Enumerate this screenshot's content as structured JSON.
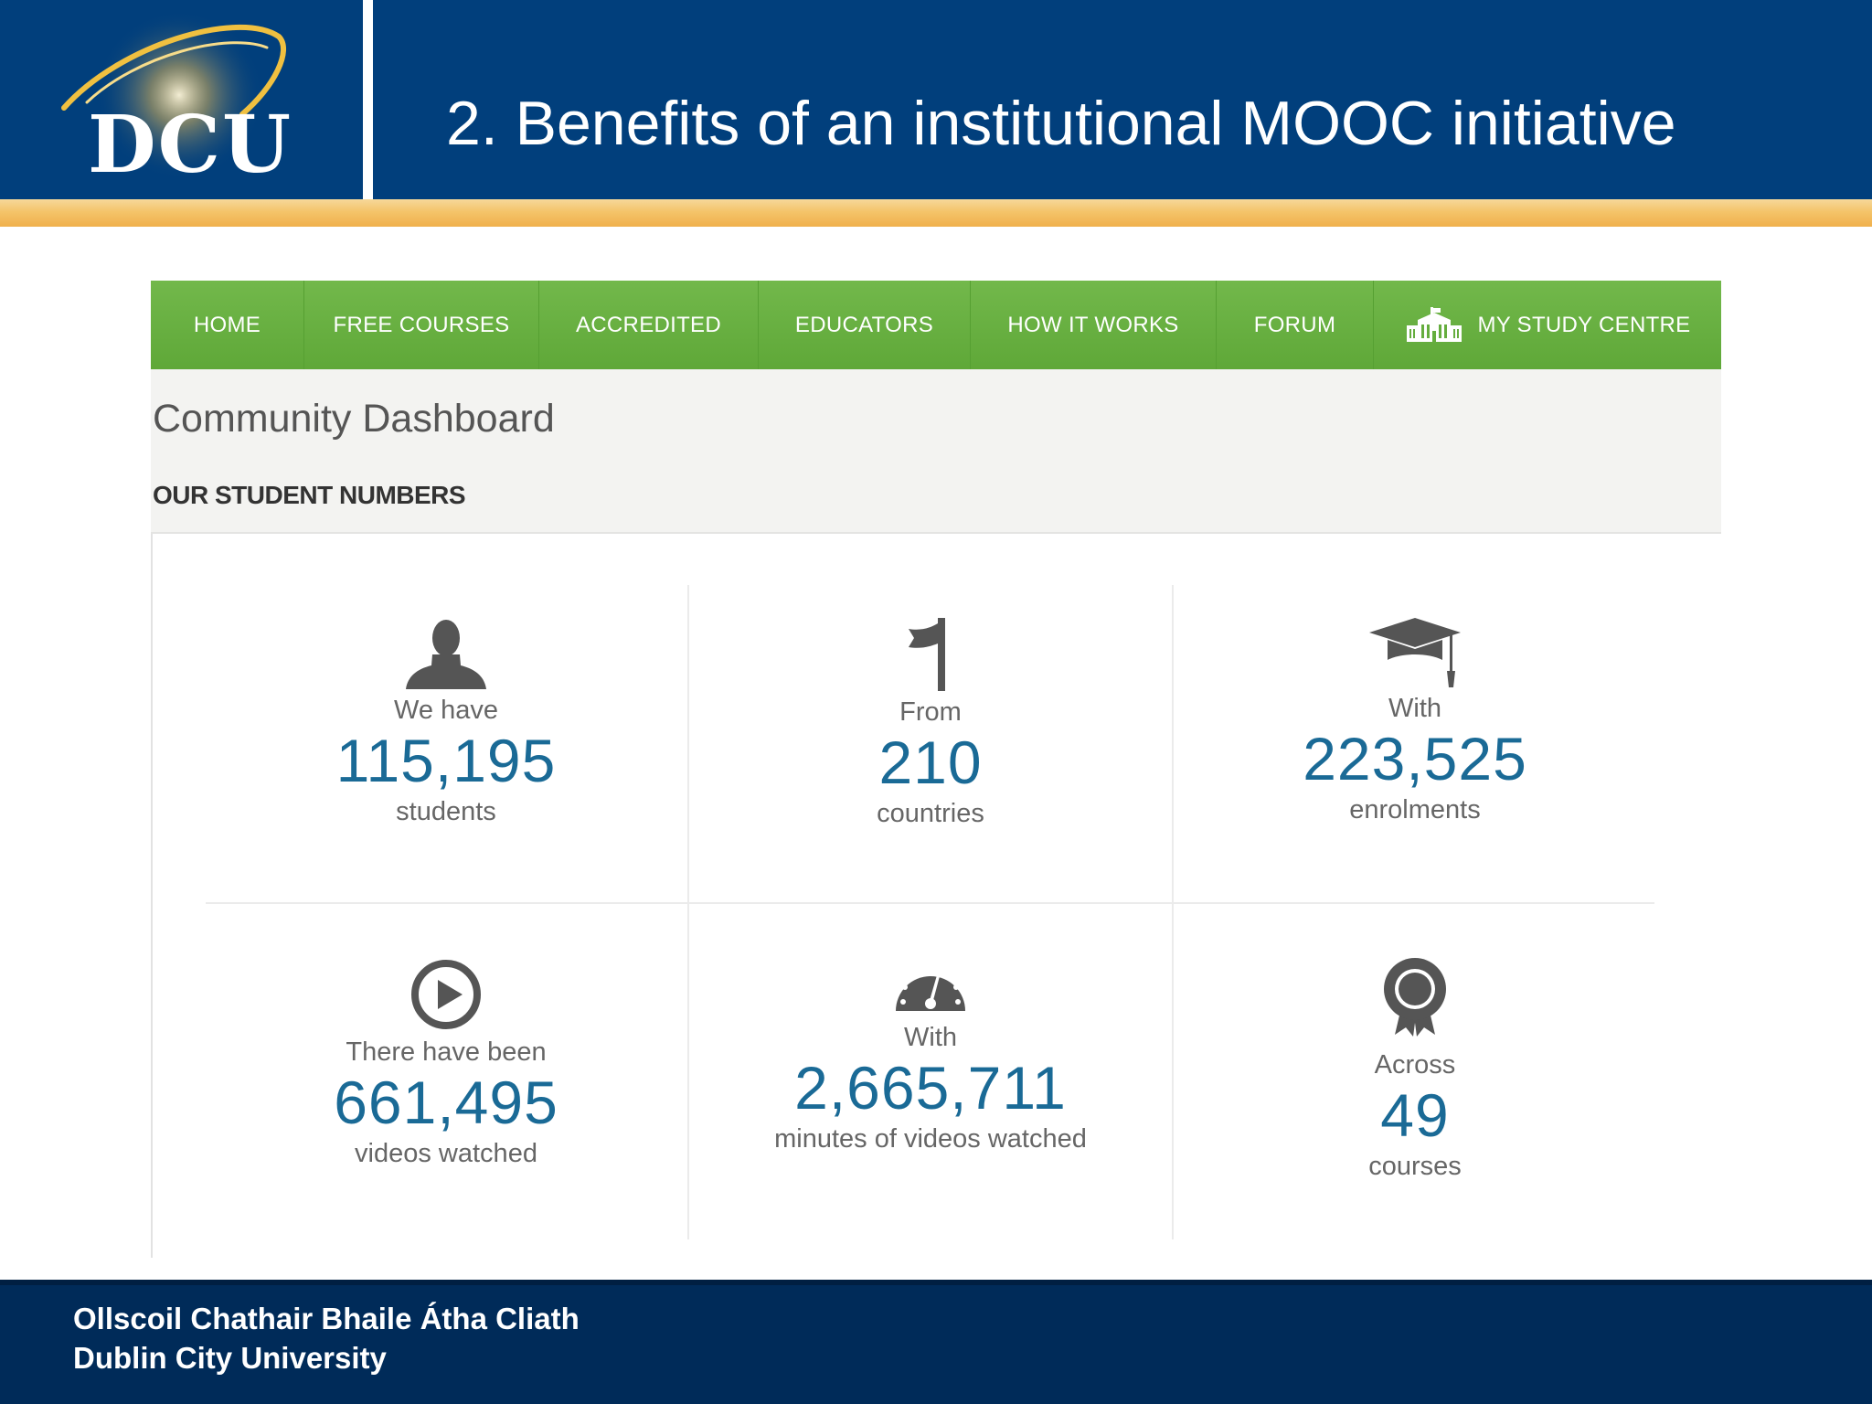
{
  "header": {
    "logo_text": "DCU",
    "title": "2. Benefits of an institutional MOOC initiative"
  },
  "nav": {
    "items": [
      {
        "label": "HOME"
      },
      {
        "label": "FREE COURSES"
      },
      {
        "label": "ACCREDITED"
      },
      {
        "label": "EDUCATORS"
      },
      {
        "label": "HOW IT WORKS"
      },
      {
        "label": "FORUM"
      },
      {
        "label": "MY STUDY CENTRE",
        "icon": "building-icon"
      }
    ]
  },
  "dashboard": {
    "title": "Community Dashboard",
    "subtitle": "OUR STUDENT NUMBERS",
    "stats": [
      {
        "icon": "person-icon",
        "label": "We have",
        "value": "115,195",
        "unit": "students"
      },
      {
        "icon": "flag-icon",
        "label": "From",
        "value": "210",
        "unit": "countries"
      },
      {
        "icon": "graduation-cap-icon",
        "label": "With",
        "value": "223,525",
        "unit": "enrolments"
      },
      {
        "icon": "play-icon",
        "label": "There have been",
        "value": "661,495",
        "unit": "videos watched"
      },
      {
        "icon": "gauge-icon",
        "label": "With",
        "value": "2,665,711",
        "unit": "minutes of videos watched"
      },
      {
        "icon": "award-ribbon-icon",
        "label": "Across",
        "value": "49",
        "unit": "courses"
      }
    ]
  },
  "footer": {
    "line1": "Ollscoil Chathair Bhaile Átha Cliath",
    "line2": "Dublin City University"
  },
  "colors": {
    "header_blue": "#013f7c",
    "gold_band": "#f4c46a",
    "nav_green": "#65ad3e",
    "stat_number_blue": "#1a6a96",
    "icon_gray": "#555555",
    "footer_navy": "#002b59"
  }
}
